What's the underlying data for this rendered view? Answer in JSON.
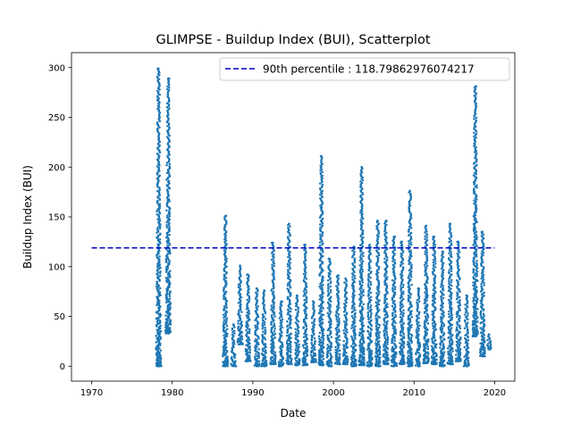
{
  "chart_data": {
    "type": "scatter",
    "title": "GLIMPSE - Buildup Index (BUI), Scatterplot",
    "xlabel": "Date",
    "ylabel": "Buildup Index (BUI)",
    "xlim": [
      1967.5,
      2022.5
    ],
    "ylim": [
      -15,
      315
    ],
    "x_ticks": [
      1970,
      1980,
      1990,
      2000,
      2010,
      2020
    ],
    "y_ticks": [
      0,
      50,
      100,
      150,
      200,
      250,
      300
    ],
    "grid": false,
    "legend_position": "top-right",
    "series_color": "#1f77b4",
    "reference_line": {
      "label": "90th percentile : 118.79862976074217",
      "value": 118.79862976074217,
      "x_range": [
        1970,
        2020
      ],
      "style": "dashed",
      "color": "#0000cc"
    },
    "points_summary": [
      {
        "year": 1978.3,
        "min": 0,
        "max": 299
      },
      {
        "year": 1979.5,
        "min": 33,
        "max": 289
      },
      {
        "year": 1986.6,
        "min": 0,
        "max": 151
      },
      {
        "year": 1987.6,
        "min": 0,
        "max": 42
      },
      {
        "year": 1988.4,
        "min": 22,
        "max": 101
      },
      {
        "year": 1989.4,
        "min": 5,
        "max": 92
      },
      {
        "year": 1990.5,
        "min": 0,
        "max": 78
      },
      {
        "year": 1991.4,
        "min": 0,
        "max": 76
      },
      {
        "year": 1992.5,
        "min": 2,
        "max": 124
      },
      {
        "year": 1993.5,
        "min": 0,
        "max": 65
      },
      {
        "year": 1994.5,
        "min": 2,
        "max": 143
      },
      {
        "year": 1995.5,
        "min": 1,
        "max": 71
      },
      {
        "year": 1996.5,
        "min": 1,
        "max": 122
      },
      {
        "year": 1997.5,
        "min": 4,
        "max": 65
      },
      {
        "year": 1998.5,
        "min": 1,
        "max": 211
      },
      {
        "year": 1999.5,
        "min": 0,
        "max": 108
      },
      {
        "year": 2000.5,
        "min": 2,
        "max": 91
      },
      {
        "year": 2001.5,
        "min": 2,
        "max": 88
      },
      {
        "year": 2002.5,
        "min": 0,
        "max": 120
      },
      {
        "year": 2003.5,
        "min": 1,
        "max": 200
      },
      {
        "year": 2004.5,
        "min": 0,
        "max": 122
      },
      {
        "year": 2005.5,
        "min": 0,
        "max": 146
      },
      {
        "year": 2006.5,
        "min": 2,
        "max": 146
      },
      {
        "year": 2007.5,
        "min": 0,
        "max": 130
      },
      {
        "year": 2008.5,
        "min": 2,
        "max": 125
      },
      {
        "year": 2009.5,
        "min": 0,
        "max": 176
      },
      {
        "year": 2010.5,
        "min": 0,
        "max": 78
      },
      {
        "year": 2011.5,
        "min": 3,
        "max": 141
      },
      {
        "year": 2012.5,
        "min": 2,
        "max": 130
      },
      {
        "year": 2013.5,
        "min": 0,
        "max": 115
      },
      {
        "year": 2014.5,
        "min": 2,
        "max": 143
      },
      {
        "year": 2015.5,
        "min": 5,
        "max": 125
      },
      {
        "year": 2016.5,
        "min": 0,
        "max": 71
      },
      {
        "year": 2017.6,
        "min": 30,
        "max": 281
      },
      {
        "year": 2018.5,
        "min": 10,
        "max": 135
      },
      {
        "year": 2019.3,
        "min": 17,
        "max": 32
      }
    ]
  }
}
